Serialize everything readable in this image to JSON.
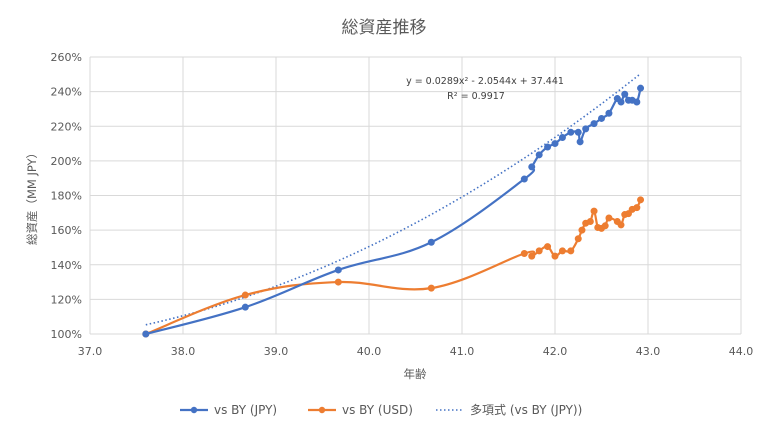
{
  "chart_data": {
    "type": "scatter",
    "title": "総資産推移",
    "xlabel": "年齢",
    "ylabel": "総資産（MM JPY）",
    "xlim": [
      37.0,
      44.0
    ],
    "ylim": [
      1.0,
      2.6
    ],
    "x_ticks": [
      "37.0",
      "38.0",
      "39.0",
      "40.0",
      "41.0",
      "42.0",
      "43.0",
      "44.0"
    ],
    "y_ticks": [
      "100%",
      "120%",
      "140%",
      "160%",
      "180%",
      "200%",
      "220%",
      "240%",
      "260%"
    ],
    "gridlines": true,
    "legend_position": "bottom",
    "series": [
      {
        "name": "vs BY (JPY)",
        "color": "#4472C4",
        "x": [
          37.6,
          38.67,
          39.67,
          40.67,
          41.67,
          41.75,
          41.83,
          41.92,
          42.0,
          42.08,
          42.17,
          42.25,
          42.27,
          42.33,
          42.42,
          42.5,
          42.58,
          42.67,
          42.71,
          42.75,
          42.79,
          42.83,
          42.88,
          42.92
        ],
        "y": [
          1.0,
          1.155,
          1.37,
          1.53,
          1.895,
          1.965,
          2.035,
          2.08,
          2.1,
          2.135,
          2.165,
          2.165,
          2.11,
          2.185,
          2.215,
          2.245,
          2.275,
          2.36,
          2.34,
          2.385,
          2.35,
          2.35,
          2.34,
          2.42
        ]
      },
      {
        "name": "vs BY (USD)",
        "color": "#ED7D31",
        "x": [
          37.6,
          38.67,
          39.67,
          40.67,
          41.67,
          41.75,
          41.83,
          41.92,
          42.0,
          42.08,
          42.17,
          42.25,
          42.29,
          42.33,
          42.38,
          42.42,
          42.46,
          42.5,
          42.54,
          42.58,
          42.67,
          42.71,
          42.75,
          42.79,
          42.83,
          42.88,
          42.92
        ],
        "y": [
          1.0,
          1.225,
          1.3,
          1.265,
          1.465,
          1.45,
          1.48,
          1.505,
          1.45,
          1.48,
          1.48,
          1.55,
          1.6,
          1.64,
          1.65,
          1.71,
          1.615,
          1.61,
          1.625,
          1.67,
          1.65,
          1.63,
          1.69,
          1.695,
          1.72,
          1.73,
          1.775
        ]
      }
    ],
    "trendline": {
      "name": "多項式 (vs BY (JPY))",
      "type": "polynomial",
      "order": 2,
      "color": "#4472C4",
      "equation": "y = 0.0289x² - 2.0544x + 37.441",
      "r_squared": "R² = 0.9917",
      "coefficients": [
        0.0289,
        -2.0544,
        37.441
      ],
      "x_range": [
        37.6,
        42.92
      ]
    }
  }
}
